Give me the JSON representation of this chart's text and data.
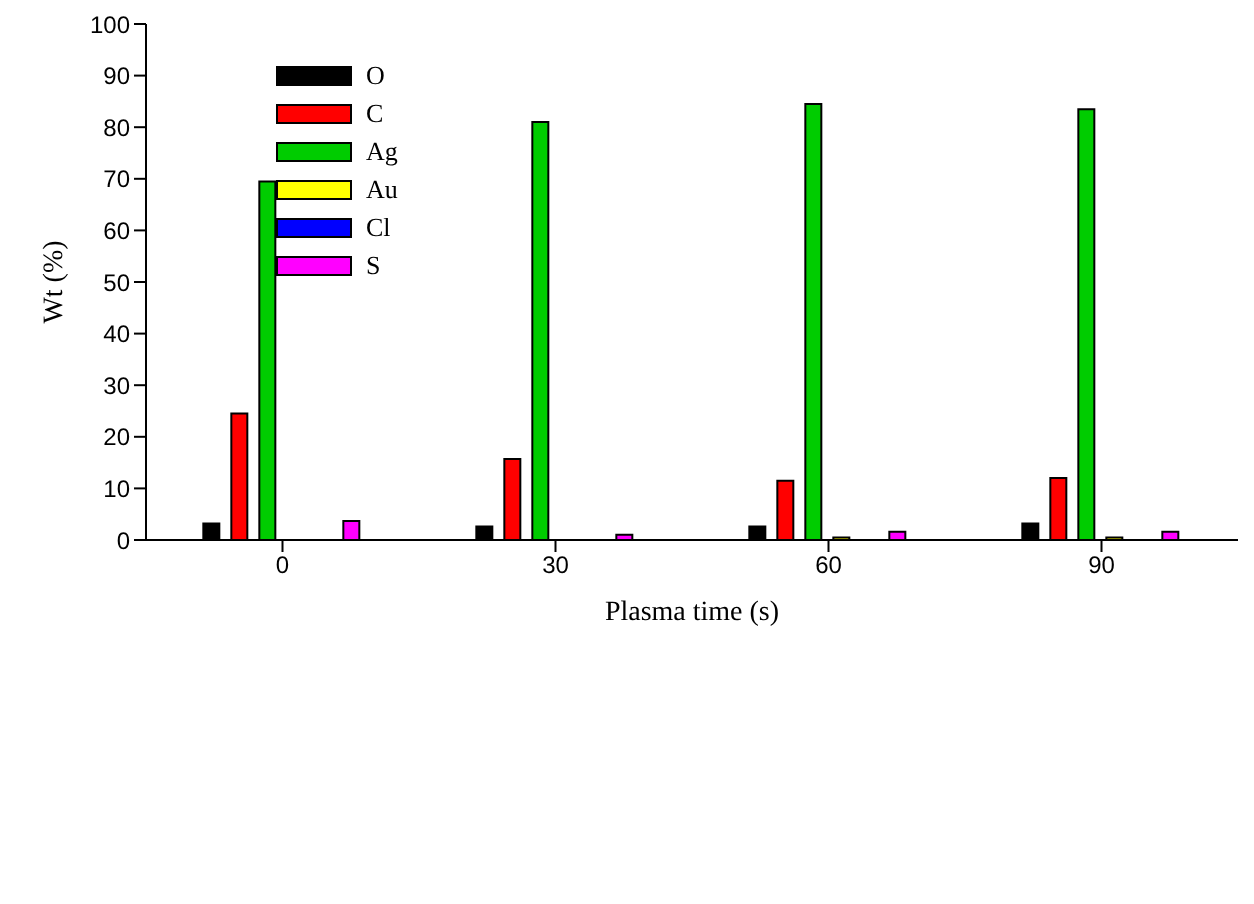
{
  "chart_data": {
    "type": "bar",
    "xlabel": "Plasma time (s)",
    "ylabel": "Wt (%)",
    "categories": [
      "0",
      "30",
      "60",
      "90"
    ],
    "series": [
      {
        "name": "O",
        "color": "#000000",
        "values": [
          3.2,
          2.6,
          2.6,
          3.2
        ]
      },
      {
        "name": "C",
        "color": "#ff0000",
        "values": [
          24.5,
          15.7,
          11.5,
          12
        ]
      },
      {
        "name": "Ag",
        "color": "#00cc00",
        "values": [
          69.5,
          81,
          84.5,
          83.5
        ]
      },
      {
        "name": "Au",
        "color": "#ffff00",
        "values": [
          0,
          0,
          0.5,
          0.5
        ]
      },
      {
        "name": "Cl",
        "color": "#0000ff",
        "values": [
          0,
          0,
          0,
          0
        ]
      },
      {
        "name": "S",
        "color": "#ff00ff",
        "values": [
          3.7,
          1,
          1.6,
          1.6
        ]
      }
    ],
    "ylim": [
      0,
      100
    ],
    "yticks": [
      0,
      10,
      20,
      30,
      40,
      50,
      60,
      70,
      80,
      90,
      100
    ],
    "grid": false,
    "legend": "top left"
  }
}
